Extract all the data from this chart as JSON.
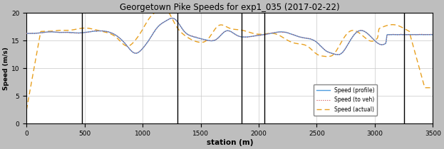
{
  "title": "Georgetown Pike Speeds for exp1_035 (2017-02-22)",
  "xlabel": "station (m)",
  "ylabel": "Speed (m/s)",
  "xlim": [
    0,
    3500
  ],
  "ylim": [
    0,
    20
  ],
  "yticks": [
    0,
    5,
    10,
    15,
    20
  ],
  "xticks": [
    0,
    500,
    1000,
    1500,
    2000,
    2500,
    3000,
    3500
  ],
  "vertical_lines": [
    480,
    1300,
    1850,
    2050,
    3250
  ],
  "baseline_speed": 16.3,
  "profile_color": "#4d9de0",
  "to_veh_color": "#cc4444",
  "actual_color": "#e8a020",
  "bg_color": "#bebebe",
  "plot_bg": "#ffffff",
  "grid_color": "#c8c8c8",
  "legend_labels": [
    "Speed (profile)",
    "Speed (to veh)",
    "Speed (actual)"
  ],
  "figsize": [
    6.23,
    2.1
  ],
  "dpi": 100
}
